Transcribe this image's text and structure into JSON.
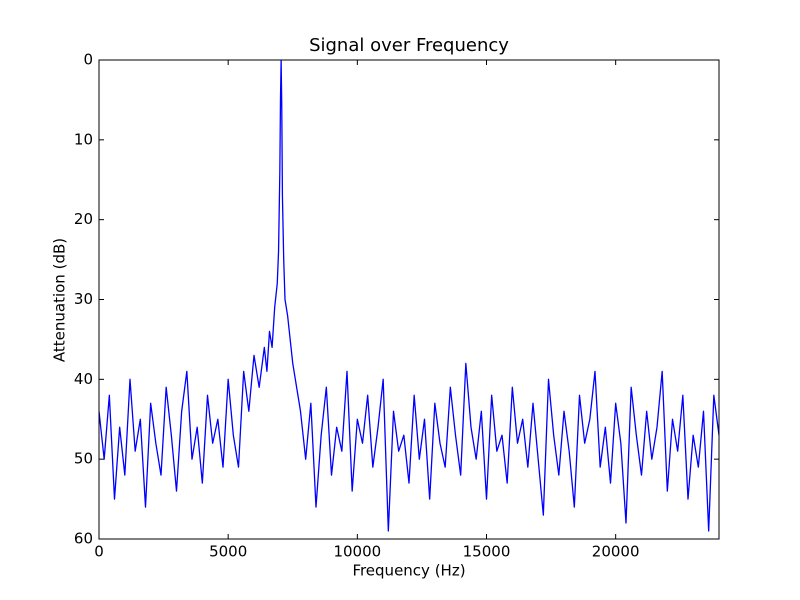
{
  "chart_data": {
    "type": "line",
    "title": "Signal over Frequency",
    "x_label": "Frequency (Hz)",
    "y_label": "Attenuation (dB)",
    "x": [
      0,
      200,
      400,
      600,
      800,
      1000,
      1200,
      1400,
      1600,
      1800,
      2000,
      2200,
      2400,
      2600,
      2800,
      3000,
      3200,
      3400,
      3600,
      3800,
      4000,
      4200,
      4400,
      4600,
      4800,
      5000,
      5200,
      5400,
      5600,
      5800,
      6000,
      6200,
      6400,
      6500,
      6600,
      6700,
      6800,
      6900,
      6950,
      7000,
      7025,
      7050,
      7075,
      7100,
      7150,
      7200,
      7300,
      7400,
      7500,
      7600,
      7800,
      8000,
      8200,
      8400,
      8600,
      8800,
      9000,
      9200,
      9400,
      9600,
      9800,
      10000,
      10200,
      10400,
      10600,
      10800,
      11000,
      11200,
      11400,
      11600,
      11800,
      12000,
      12200,
      12400,
      12600,
      12800,
      13000,
      13200,
      13400,
      13600,
      13800,
      14000,
      14200,
      14400,
      14600,
      14800,
      15000,
      15200,
      15400,
      15600,
      15800,
      16000,
      16200,
      16400,
      16600,
      16800,
      17000,
      17200,
      17400,
      17600,
      17800,
      18000,
      18200,
      18400,
      18600,
      18800,
      19000,
      19200,
      19400,
      19600,
      19800,
      20000,
      20200,
      20400,
      20600,
      20800,
      21000,
      21200,
      21400,
      21600,
      21800,
      22000,
      22200,
      22400,
      22600,
      22800,
      23000,
      23200,
      23400,
      23600,
      23800,
      24000
    ],
    "series": [
      {
        "color": "#0000ff",
        "values": [
          44,
          50,
          42,
          55,
          46,
          52,
          40,
          49,
          45,
          56,
          43,
          48,
          52,
          41,
          47,
          54,
          44,
          39,
          50,
          46,
          53,
          42,
          48,
          45,
          51,
          40,
          47,
          51,
          39,
          44,
          37,
          41,
          36,
          39,
          34,
          36,
          31,
          28,
          24,
          14,
          5,
          0,
          6,
          17,
          25,
          30,
          32,
          35,
          38,
          40,
          44,
          50,
          43,
          56,
          47,
          41,
          52,
          46,
          49,
          39,
          54,
          45,
          48,
          42,
          51,
          46,
          40,
          59,
          44,
          49,
          47,
          53,
          42,
          50,
          45,
          55,
          43,
          48,
          51,
          41,
          47,
          52,
          38,
          46,
          50,
          44,
          55,
          42,
          49,
          47,
          53,
          41,
          48,
          45,
          51,
          43,
          50,
          57,
          40,
          47,
          52,
          44,
          49,
          56,
          42,
          48,
          45,
          39,
          51,
          46,
          53,
          43,
          48,
          58,
          41,
          47,
          52,
          44,
          50,
          46,
          39,
          54,
          45,
          49,
          42,
          55,
          47,
          51,
          44,
          59,
          42,
          47
        ]
      }
    ],
    "xlim": [
      0,
      24000
    ],
    "xticks": [
      0,
      5000,
      10000,
      15000,
      20000
    ],
    "ylim": [
      0,
      60
    ],
    "yticks": [
      0,
      10,
      20,
      30,
      40,
      50,
      60
    ],
    "y_inverted": true
  }
}
